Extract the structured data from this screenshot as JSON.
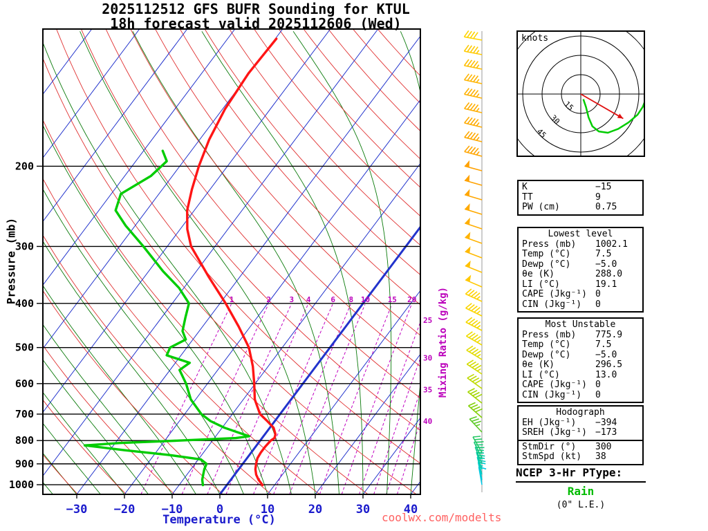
{
  "title": {
    "line1": "2025112512 GFS BUFR Sounding for KTUL",
    "line2": "18h forecast valid 2025112606 (Wed)"
  },
  "axes": {
    "pressure_label": "Pressure (mb)",
    "temperature_label": "Temperature (°C)",
    "mixing_ratio_label": "Mixing Ratio (g/kg)"
  },
  "watermark": "coolwx.com/modelts",
  "hodograph": {
    "units_label": "knots",
    "ring_interval_kt": 15,
    "ring_labels": [
      "15",
      "30",
      "45"
    ],
    "trace_uv_kt": [
      [
        2,
        -4
      ],
      [
        4,
        -10
      ],
      [
        6,
        -18
      ],
      [
        9,
        -25
      ],
      [
        14,
        -29
      ],
      [
        21,
        -30
      ],
      [
        29,
        -27
      ],
      [
        37,
        -22
      ],
      [
        44,
        -16
      ],
      [
        48,
        -10
      ],
      [
        50,
        -5
      ]
    ],
    "storm_motion": {
      "dir_deg": 300,
      "spd_kt": 38
    }
  },
  "stats": {
    "indices": [
      {
        "label": "K",
        "value": "−15"
      },
      {
        "label": "TT",
        "value": "9"
      },
      {
        "label": "PW (cm)",
        "value": "0.75"
      }
    ],
    "lowest_level": {
      "title": "Lowest level",
      "rows": [
        [
          "Press (mb)",
          "1002.1"
        ],
        [
          "Temp (°C)",
          "7.5"
        ],
        [
          "Dewp (°C)",
          "−5.0"
        ],
        [
          "θe (K)",
          "288.0"
        ],
        [
          "LI (°C)",
          "19.1"
        ],
        [
          "CAPE (Jkg⁻¹)",
          "0"
        ],
        [
          "CIN (Jkg⁻¹)",
          "0"
        ]
      ]
    },
    "most_unstable": {
      "title": "Most Unstable",
      "rows": [
        [
          "Press (mb)",
          "775.9"
        ],
        [
          "Temp (°C)",
          "7.5"
        ],
        [
          "Dewp (°C)",
          "−5.0"
        ],
        [
          "θe (K)",
          "296.5"
        ],
        [
          "LI (°C)",
          "13.0"
        ],
        [
          "CAPE (Jkg⁻¹)",
          "0"
        ],
        [
          "CIN (Jkg⁻¹)",
          "0"
        ]
      ]
    },
    "hodograph_stats": {
      "title": "Hodograph",
      "rows": [
        [
          "EH (Jkg⁻¹)",
          "−394"
        ],
        [
          "SREH (Jkg⁻¹)",
          "−173"
        ]
      ],
      "rows2": [
        [
          "StmDir (°)",
          "300"
        ],
        [
          "StmSpd (kt)",
          "38"
        ]
      ]
    }
  },
  "ptype": {
    "heading": "NCEP 3-Hr PType:",
    "value": "Rain",
    "note": "(0\" L.E.)"
  },
  "chart_data": {
    "type": "skewt-logp",
    "title": "2025112512 GFS BUFR Sounding for KTUL",
    "subtitle": "18h forecast valid 2025112606 (Wed)",
    "station": "KTUL",
    "pressure_ticks_mb": [
      200,
      300,
      400,
      500,
      600,
      700,
      800,
      900,
      1000
    ],
    "pressure_range_mb": [
      100,
      1050
    ],
    "temp_ticks_c": [
      -30,
      -20,
      -10,
      0,
      10,
      20,
      30,
      40
    ],
    "isotherm_interval_c": 10,
    "mixing_ratio_lines_gkg": [
      1,
      2,
      3,
      4,
      6,
      8,
      10,
      15,
      20,
      25,
      30,
      35,
      40
    ],
    "temperature_profile_p_t": [
      [
        1002,
        7.5
      ],
      [
        975,
        5.8
      ],
      [
        950,
        4.5
      ],
      [
        925,
        3.5
      ],
      [
        900,
        2.8
      ],
      [
        875,
        2.2
      ],
      [
        850,
        2.0
      ],
      [
        825,
        2.0
      ],
      [
        800,
        2.2
      ],
      [
        790,
        2.6
      ],
      [
        775,
        2.2
      ],
      [
        750,
        0.8
      ],
      [
        725,
        -1.6
      ],
      [
        700,
        -4.2
      ],
      [
        650,
        -7.6
      ],
      [
        600,
        -10.2
      ],
      [
        550,
        -13.2
      ],
      [
        500,
        -17.0
      ],
      [
        450,
        -22.4
      ],
      [
        400,
        -28.8
      ],
      [
        350,
        -36.5
      ],
      [
        300,
        -45.0
      ],
      [
        275,
        -48.5
      ],
      [
        250,
        -51.5
      ],
      [
        225,
        -53.8
      ],
      [
        200,
        -56.0
      ],
      [
        175,
        -58.0
      ],
      [
        150,
        -59.5
      ],
      [
        125,
        -60.2
      ],
      [
        105,
        -59.8
      ]
    ],
    "dewpoint_profile_p_td": [
      [
        1002,
        -5.0
      ],
      [
        975,
        -6.0
      ],
      [
        950,
        -6.6
      ],
      [
        925,
        -7.2
      ],
      [
        900,
        -7.6
      ],
      [
        880,
        -9.5
      ],
      [
        860,
        -17.0
      ],
      [
        840,
        -27.0
      ],
      [
        820,
        -36.0
      ],
      [
        810,
        -29.0
      ],
      [
        800,
        -17.0
      ],
      [
        790,
        -5.5
      ],
      [
        783,
        -3.0
      ],
      [
        775,
        -4.5
      ],
      [
        750,
        -9.5
      ],
      [
        725,
        -13.5
      ],
      [
        700,
        -16.5
      ],
      [
        650,
        -21.0
      ],
      [
        600,
        -24.5
      ],
      [
        560,
        -28.0
      ],
      [
        540,
        -27.0
      ],
      [
        520,
        -33.0
      ],
      [
        500,
        -33.5
      ],
      [
        480,
        -31.5
      ],
      [
        460,
        -33.5
      ],
      [
        430,
        -35.0
      ],
      [
        400,
        -36.5
      ],
      [
        370,
        -41.0
      ],
      [
        340,
        -47.0
      ],
      [
        300,
        -55.0
      ],
      [
        270,
        -62.0
      ],
      [
        250,
        -66.5
      ],
      [
        230,
        -68.0
      ],
      [
        210,
        -64.5
      ],
      [
        195,
        -63.5
      ],
      [
        185,
        -66.0
      ]
    ],
    "wind_profile_p_dir_kt": [
      [
        1000,
        350,
        8
      ],
      [
        975,
        348,
        14
      ],
      [
        950,
        345,
        20
      ],
      [
        925,
        342,
        24
      ],
      [
        900,
        338,
        26
      ],
      [
        875,
        334,
        28
      ],
      [
        850,
        330,
        30
      ],
      [
        800,
        320,
        33
      ],
      [
        750,
        315,
        36
      ],
      [
        700,
        310,
        38
      ],
      [
        650,
        308,
        40
      ],
      [
        600,
        305,
        42
      ],
      [
        550,
        302,
        44
      ],
      [
        500,
        300,
        45
      ],
      [
        450,
        297,
        46
      ],
      [
        400,
        295,
        47
      ],
      [
        350,
        292,
        48
      ],
      [
        300,
        290,
        49
      ],
      [
        250,
        287,
        50
      ],
      [
        200,
        285,
        48
      ],
      [
        150,
        283,
        45
      ],
      [
        100,
        280,
        42
      ]
    ],
    "colors": {
      "temperature_line": "#ff1515",
      "dewpoint_line": "#00cc00",
      "isotherms": "#2233cc",
      "dry_adiabats": "#e03030",
      "moist_adiabats": "#0a7a0a",
      "mixing_ratio_lines": "#c000c0",
      "pressure_lines": "#000000",
      "temp_axis_text": "#1a1acc",
      "mixing_text": "#bb00bb",
      "watermark": "#ff6060",
      "ptype_value": "#00bb00",
      "hodograph_trace": "#00cc00",
      "storm_motion_arrow": "#e01010"
    },
    "barb_color_stops": [
      [
        100,
        "#ffdc00"
      ],
      [
        130,
        "#ffb400"
      ],
      [
        210,
        "#ffa000"
      ],
      [
        300,
        "#ffb400"
      ],
      [
        400,
        "#ffd200"
      ],
      [
        500,
        "#eedc00"
      ],
      [
        600,
        "#c8dc00"
      ],
      [
        700,
        "#8cd200"
      ],
      [
        800,
        "#46c83c"
      ],
      [
        880,
        "#14c87d"
      ],
      [
        945,
        "#00ccb8"
      ],
      [
        1010,
        "#00c8f0"
      ]
    ]
  }
}
